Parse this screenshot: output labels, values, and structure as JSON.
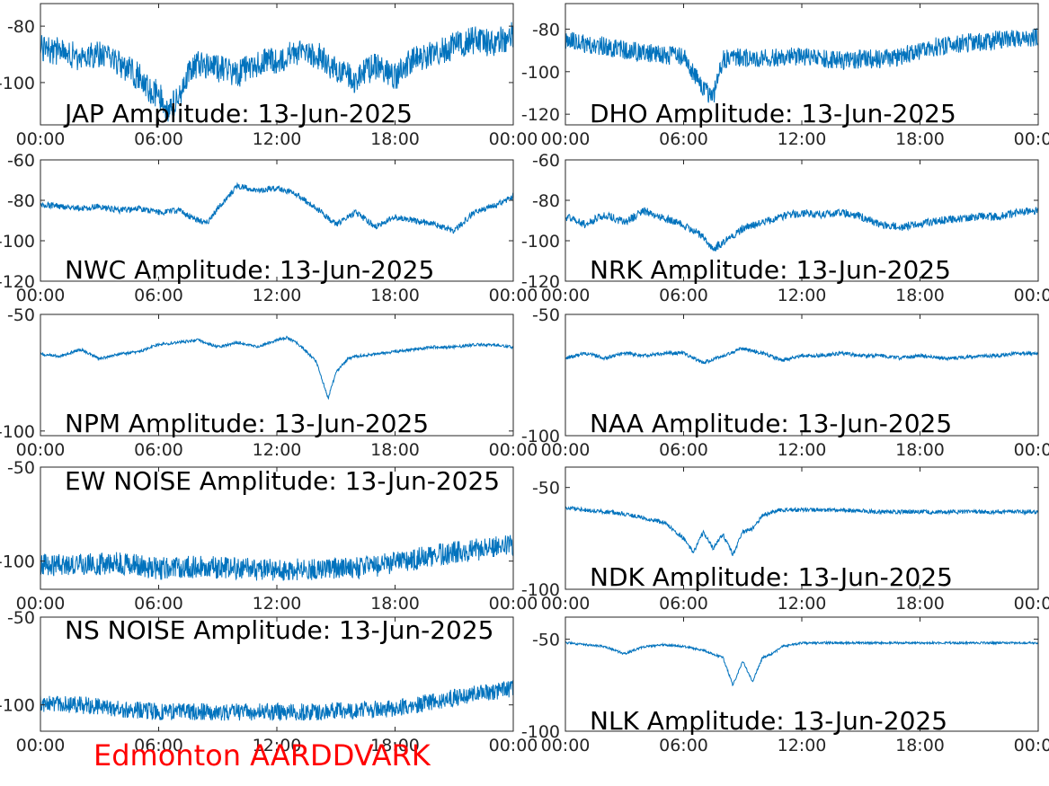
{
  "footer": {
    "title": "Edmonton AARDDVARK",
    "color": "#ff0000"
  },
  "colors": {
    "trace": "#0072BD",
    "axes": "#262626",
    "background": "#ffffff"
  },
  "chart_data": [
    {
      "type": "line",
      "id": "jap",
      "title": "JAP Amplitude: 13-Jun-2025",
      "xlabel": "",
      "ylabel": "",
      "xticks": [
        "00:00",
        "06:00",
        "12:00",
        "18:00",
        "00:00"
      ],
      "yticks": [
        -80,
        -100
      ],
      "ylim": [
        -115,
        -72
      ],
      "grid": false,
      "noise": 10,
      "x": [
        0,
        1,
        2,
        3,
        4,
        5,
        5.5,
        6,
        6.5,
        7,
        7.5,
        8,
        9,
        10,
        11,
        12,
        13,
        14,
        15,
        16,
        17,
        18,
        19,
        20,
        21,
        22,
        23,
        24
      ],
      "y": [
        -88,
        -89,
        -91,
        -90,
        -93,
        -98,
        -103,
        -104,
        -110,
        -105,
        -96,
        -93,
        -95,
        -97,
        -93,
        -92,
        -89,
        -90,
        -96,
        -99,
        -94,
        -98,
        -91,
        -90,
        -87,
        -85,
        -86,
        -83
      ]
    },
    {
      "type": "line",
      "id": "dho",
      "title": "DHO Amplitude: 13-Jun-2025",
      "xlabel": "",
      "ylabel": "",
      "xticks": [
        "00:00",
        "06:00",
        "12:00",
        "18:00",
        "00:00"
      ],
      "yticks": [
        -80,
        -100,
        -120
      ],
      "ylim": [
        -125,
        -68
      ],
      "grid": false,
      "noise": 9,
      "x": [
        0,
        1,
        2,
        3,
        4,
        5,
        6,
        7,
        7.5,
        8,
        9,
        10,
        11,
        12,
        13,
        14,
        15,
        16,
        17,
        18,
        19,
        20,
        21,
        22,
        23,
        24
      ],
      "y": [
        -85,
        -87,
        -88,
        -90,
        -91,
        -92,
        -93,
        -108,
        -112,
        -94,
        -93,
        -94,
        -93,
        -93,
        -94,
        -95,
        -94,
        -94,
        -93,
        -90,
        -88,
        -87,
        -86,
        -85,
        -84,
        -84
      ]
    },
    {
      "type": "line",
      "id": "nwc",
      "title": "NWC Amplitude: 13-Jun-2025",
      "xlabel": "",
      "ylabel": "",
      "xticks": [
        "00:00",
        "06:00",
        "12:00",
        "18:00",
        "00:00"
      ],
      "yticks": [
        -60,
        -80,
        -100,
        -120
      ],
      "ylim": [
        -120,
        -60
      ],
      "grid": false,
      "noise": 3,
      "x": [
        0,
        1,
        2,
        3,
        4,
        5,
        6,
        7,
        8,
        8.5,
        9,
        10,
        11,
        12,
        13,
        14,
        15,
        16,
        17,
        18,
        19,
        20,
        21,
        22,
        23,
        24
      ],
      "y": [
        -82,
        -83,
        -84,
        -83,
        -85,
        -84,
        -86,
        -85,
        -90,
        -91,
        -84,
        -73,
        -75,
        -74,
        -77,
        -84,
        -92,
        -86,
        -93,
        -88,
        -90,
        -92,
        -95,
        -86,
        -83,
        -78
      ]
    },
    {
      "type": "line",
      "id": "nrk",
      "title": "NRK Amplitude: 13-Jun-2025",
      "xlabel": "",
      "ylabel": "",
      "xticks": [
        "00:00",
        "06:00",
        "12:00",
        "18:00",
        "00:00"
      ],
      "yticks": [
        -60,
        -80,
        -100,
        -120
      ],
      "ylim": [
        -120,
        -60
      ],
      "grid": false,
      "noise": 4,
      "x": [
        0,
        1,
        2,
        3,
        4,
        5,
        6,
        7,
        7.5,
        8,
        9,
        10,
        11,
        12,
        13,
        14,
        15,
        16,
        17,
        18,
        19,
        20,
        21,
        22,
        23,
        24
      ],
      "y": [
        -88,
        -92,
        -87,
        -91,
        -85,
        -89,
        -92,
        -98,
        -104,
        -101,
        -94,
        -91,
        -88,
        -86,
        -87,
        -86,
        -88,
        -92,
        -93,
        -92,
        -90,
        -89,
        -88,
        -88,
        -86,
        -85
      ]
    },
    {
      "type": "line",
      "id": "npm",
      "title": "NPM Amplitude: 13-Jun-2025",
      "xlabel": "",
      "ylabel": "",
      "xticks": [
        "00:00",
        "06:00",
        "12:00",
        "18:00",
        "00:00"
      ],
      "yticks": [
        -50,
        -100
      ],
      "ylim": [
        -102,
        -50
      ],
      "grid": false,
      "noise": 1.2,
      "x": [
        0,
        1,
        2,
        3,
        4,
        5,
        6,
        7,
        8,
        9,
        10,
        11,
        12,
        12.5,
        13,
        14,
        14.6,
        15,
        15.6,
        16,
        17,
        18,
        19,
        20,
        21,
        22,
        23,
        24
      ],
      "y": [
        -67,
        -68,
        -65,
        -69,
        -67,
        -66,
        -63,
        -62,
        -61,
        -64,
        -62,
        -64,
        -61,
        -60,
        -62,
        -70,
        -86,
        -75,
        -69,
        -68,
        -67,
        -66,
        -65,
        -64,
        -64,
        -63,
        -63,
        -64
      ]
    },
    {
      "type": "line",
      "id": "naa",
      "title": "NAA Amplitude: 13-Jun-2025",
      "xlabel": "",
      "ylabel": "",
      "xticks": [
        "00:00",
        "06:00",
        "12:00",
        "18:00",
        "00:00"
      ],
      "yticks": [
        -50,
        -100
      ],
      "ylim": [
        -100,
        -50
      ],
      "grid": false,
      "noise": 1.5,
      "x": [
        0,
        1,
        2,
        3,
        4,
        5,
        6,
        7,
        8,
        9,
        10,
        11,
        12,
        13,
        14,
        15,
        16,
        17,
        18,
        19,
        20,
        21,
        22,
        23,
        24
      ],
      "y": [
        -68,
        -66,
        -68,
        -66,
        -67,
        -66,
        -66,
        -70,
        -67,
        -64,
        -66,
        -69,
        -67,
        -67,
        -66,
        -67,
        -67,
        -68,
        -67,
        -68,
        -68,
        -67,
        -67,
        -66,
        -66
      ]
    },
    {
      "type": "line",
      "id": "ew-noise",
      "title": "EW NOISE Amplitude: 13-Jun-2025",
      "xlabel": "",
      "ylabel": "",
      "xticks": [
        "00:00",
        "06:00",
        "12:00",
        "18:00",
        "00:00"
      ],
      "yticks": [
        -50,
        -100
      ],
      "ylim": [
        -115,
        -50
      ],
      "grid": false,
      "noise": 12,
      "x": [
        0,
        2,
        4,
        6,
        8,
        10,
        12,
        14,
        16,
        18,
        20,
        22,
        24
      ],
      "y": [
        -102,
        -102,
        -101,
        -104,
        -103,
        -104,
        -105,
        -104,
        -104,
        -101,
        -97,
        -94,
        -92
      ]
    },
    {
      "type": "line",
      "id": "ndk",
      "title": "NDK Amplitude: 13-Jun-2025",
      "xlabel": "",
      "ylabel": "",
      "xticks": [
        "00:00",
        "06:00",
        "12:00",
        "18:00",
        "00:00"
      ],
      "yticks": [
        -50,
        -100
      ],
      "ylim": [
        -100,
        -40
      ],
      "grid": false,
      "noise": 2,
      "x": [
        0,
        1,
        2,
        3,
        4,
        5,
        6,
        6.5,
        7,
        7.5,
        8,
        8.5,
        9,
        9.5,
        10,
        10.5,
        11,
        12,
        14,
        16,
        18,
        20,
        22,
        24
      ],
      "y": [
        -60,
        -61,
        -62,
        -63,
        -65,
        -67,
        -75,
        -82,
        -72,
        -80,
        -73,
        -83,
        -72,
        -70,
        -64,
        -62,
        -61,
        -61,
        -61,
        -62,
        -62,
        -62,
        -62,
        -62
      ]
    },
    {
      "type": "line",
      "id": "ns-noise",
      "title": "NS NOISE Amplitude: 13-Jun-2025",
      "xlabel": "",
      "ylabel": "",
      "xticks": [
        "00:00",
        "06:00",
        "12:00",
        "18:00",
        "00:00"
      ],
      "yticks": [
        -50,
        -100
      ],
      "ylim": [
        -115,
        -50
      ],
      "grid": false,
      "noise": 10,
      "x": [
        0,
        2,
        4,
        6,
        8,
        10,
        12,
        13,
        14,
        16,
        18,
        20,
        22,
        24
      ],
      "y": [
        -99,
        -100,
        -102,
        -104,
        -104,
        -104,
        -104,
        -104,
        -104,
        -103,
        -102,
        -98,
        -94,
        -91
      ]
    },
    {
      "type": "line",
      "id": "nlk",
      "title": "NLK Amplitude: 13-Jun-2025",
      "xlabel": "",
      "ylabel": "",
      "xticks": [
        "00:00",
        "06:00",
        "12:00",
        "18:00",
        "00:00"
      ],
      "yticks": [
        -50,
        -100
      ],
      "ylim": [
        -100,
        -38
      ],
      "grid": false,
      "noise": 1.2,
      "x": [
        0,
        1,
        2,
        3,
        4,
        5,
        6,
        7,
        8,
        8.5,
        9,
        9.5,
        10,
        10.5,
        11,
        12,
        14,
        16,
        18,
        20,
        22,
        24
      ],
      "y": [
        -52,
        -53,
        -54,
        -58,
        -54,
        -53,
        -54,
        -56,
        -60,
        -75,
        -62,
        -73,
        -60,
        -58,
        -54,
        -52,
        -52,
        -52,
        -52,
        -52,
        -52,
        -52
      ]
    }
  ]
}
